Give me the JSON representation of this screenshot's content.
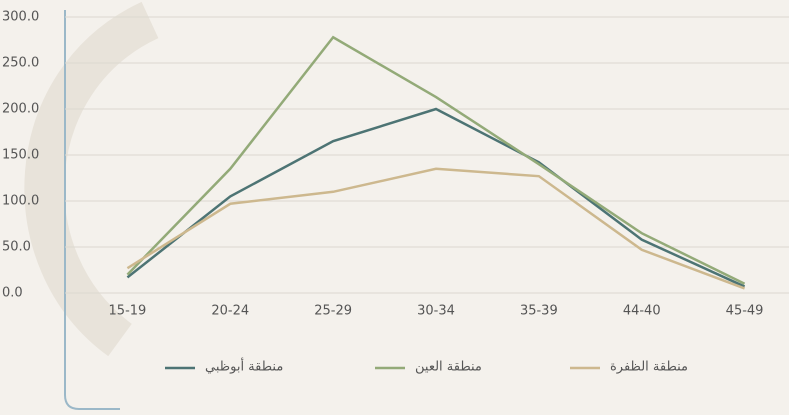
{
  "chart_data": {
    "type": "line",
    "categories": [
      "15-19",
      "20-24",
      "25-29",
      "30-34",
      "35-39",
      "44-40",
      "45-49"
    ],
    "series": [
      {
        "name": "منطقة أبوظبي",
        "color": "#4d7474",
        "values": [
          17,
          105,
          165,
          200,
          142,
          58,
          7
        ]
      },
      {
        "name": "منطقة العين",
        "color": "#93aa78",
        "values": [
          20,
          135,
          278,
          213,
          140,
          65,
          10
        ]
      },
      {
        "name": "منطقة الظفرة",
        "color": "#cdb88e",
        "values": [
          27,
          97,
          110,
          135,
          127,
          47,
          5
        ]
      }
    ],
    "ylim": [
      0,
      300
    ],
    "yticks": [
      {
        "value": 0,
        "label": "0.0"
      },
      {
        "value": 50,
        "label": "50.0"
      },
      {
        "value": 100,
        "label": "100.0"
      },
      {
        "value": 150,
        "label": "150.0"
      },
      {
        "value": 200,
        "label": "200.0"
      },
      {
        "value": 250,
        "label": "250.0"
      },
      {
        "value": 300,
        "label": "300.0"
      }
    ],
    "grid": true
  }
}
